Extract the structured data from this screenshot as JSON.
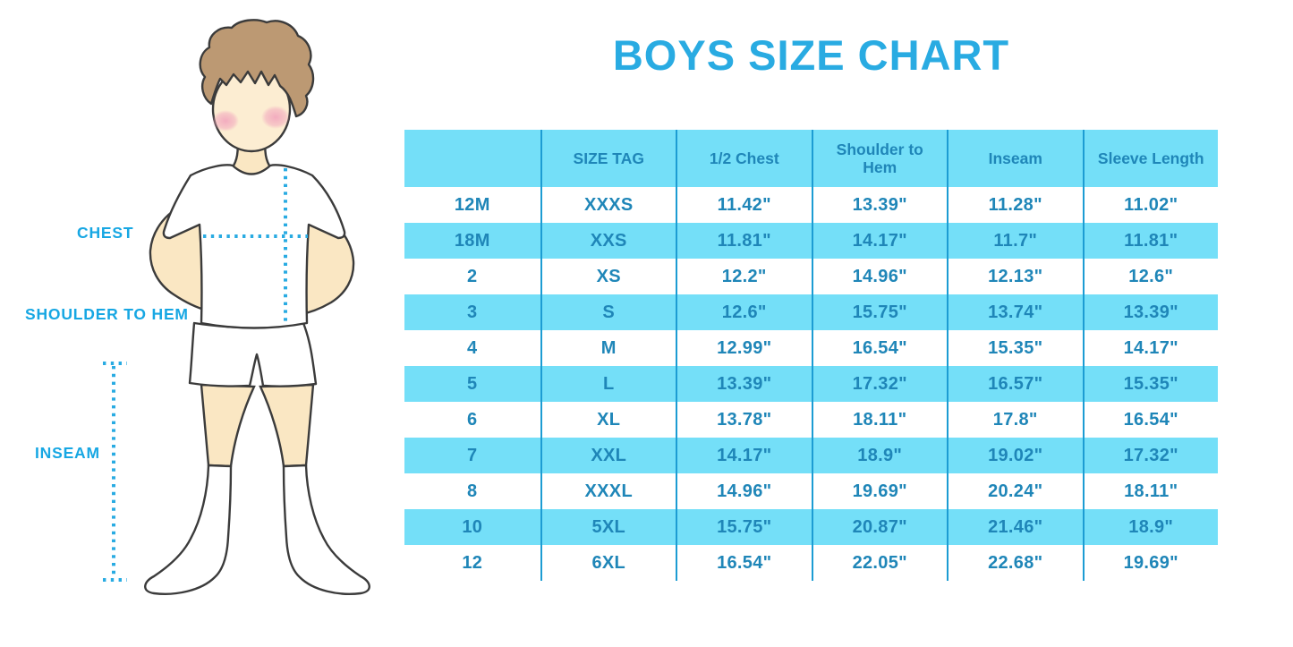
{
  "title": "BOYS SIZE CHART",
  "figure": {
    "chest_label": "CHEST",
    "shoulder_label": "SHOULDER TO HEM",
    "inseam_label": "INSEAM"
  },
  "colors": {
    "title_blue": "#29ABE2",
    "label_blue": "#17A7E3",
    "table_text": "#1F86B8",
    "band_cyan": "#74DFF8",
    "grid_line": "#1C9CD3",
    "dotted_line": "#29ABE2",
    "skin": "#FAE7C3",
    "hair": "#BC9973",
    "outline": "#3B3B3B",
    "blush": "#F2A9BE"
  },
  "chart_data": {
    "type": "table",
    "title": "BOYS SIZE CHART",
    "columns": [
      "",
      "SIZE TAG",
      "1/2 Chest",
      "Shoulder to Hem",
      "Inseam",
      "Sleeve Length"
    ],
    "rows": [
      [
        "12M",
        "XXXS",
        "11.42\"",
        "13.39\"",
        "11.28\"",
        "11.02\""
      ],
      [
        "18M",
        "XXS",
        "11.81\"",
        "14.17\"",
        "11.7\"",
        "11.81\""
      ],
      [
        "2",
        "XS",
        "12.2\"",
        "14.96\"",
        "12.13\"",
        "12.6\""
      ],
      [
        "3",
        "S",
        "12.6\"",
        "15.75\"",
        "13.74\"",
        "13.39\""
      ],
      [
        "4",
        "M",
        "12.99\"",
        "16.54\"",
        "15.35\"",
        "14.17\""
      ],
      [
        "5",
        "L",
        "13.39\"",
        "17.32\"",
        "16.57\"",
        "15.35\""
      ],
      [
        "6",
        "XL",
        "13.78\"",
        "18.11\"",
        "17.8\"",
        "16.54\""
      ],
      [
        "7",
        "XXL",
        "14.17\"",
        "18.9\"",
        "19.02\"",
        "17.32\""
      ],
      [
        "8",
        "XXXL",
        "14.96\"",
        "19.69\"",
        "20.24\"",
        "18.11\""
      ],
      [
        "10",
        "5XL",
        "15.75\"",
        "20.87\"",
        "21.46\"",
        "18.9\""
      ],
      [
        "12",
        "6XL",
        "16.54\"",
        "22.05\"",
        "22.68\"",
        "19.69\""
      ]
    ],
    "layout_hints": {
      "striping": "header cyan, data rows alternate white/cyan",
      "grid": "vertical column separators only",
      "legend_position": "none"
    }
  }
}
